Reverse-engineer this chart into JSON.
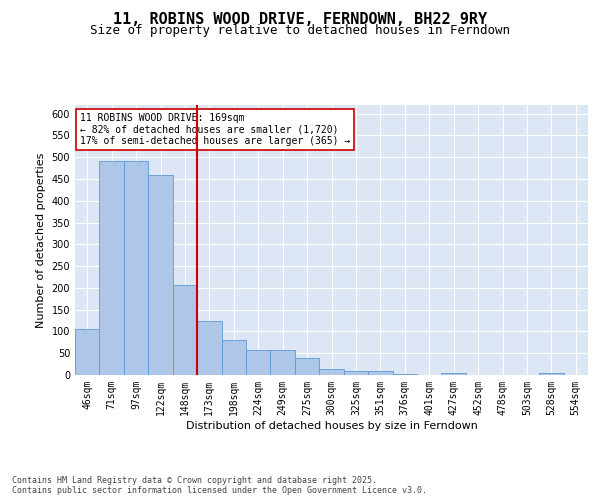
{
  "title": "11, ROBINS WOOD DRIVE, FERNDOWN, BH22 9RY",
  "subtitle": "Size of property relative to detached houses in Ferndown",
  "xlabel": "Distribution of detached houses by size in Ferndown",
  "ylabel": "Number of detached properties",
  "categories": [
    "46sqm",
    "71sqm",
    "97sqm",
    "122sqm",
    "148sqm",
    "173sqm",
    "198sqm",
    "224sqm",
    "249sqm",
    "275sqm",
    "300sqm",
    "325sqm",
    "351sqm",
    "376sqm",
    "401sqm",
    "427sqm",
    "452sqm",
    "478sqm",
    "503sqm",
    "528sqm",
    "554sqm"
  ],
  "values": [
    105,
    492,
    492,
    460,
    207,
    123,
    81,
    57,
    57,
    38,
    14,
    10,
    10,
    3,
    0,
    5,
    0,
    0,
    0,
    5,
    0
  ],
  "bar_color": "#aec6e8",
  "bar_edge_color": "#5b9bd5",
  "vline_x": 4.5,
  "vline_color": "#cc0000",
  "annotation_text": "11 ROBINS WOOD DRIVE: 169sqm\n← 82% of detached houses are smaller (1,720)\n17% of semi-detached houses are larger (365) →",
  "annotation_box_color": "#ffffff",
  "annotation_box_edge": "#cc0000",
  "footnote": "Contains HM Land Registry data © Crown copyright and database right 2025.\nContains public sector information licensed under the Open Government Licence v3.0.",
  "ylim": [
    0,
    620
  ],
  "yticks": [
    0,
    50,
    100,
    150,
    200,
    250,
    300,
    350,
    400,
    450,
    500,
    550,
    600
  ],
  "plot_bg_color": "#dce6f5",
  "fig_bg_color": "#ffffff",
  "title_fontsize": 11,
  "subtitle_fontsize": 9,
  "tick_fontsize": 7,
  "label_fontsize": 8,
  "annotation_fontsize": 7,
  "footnote_fontsize": 6
}
